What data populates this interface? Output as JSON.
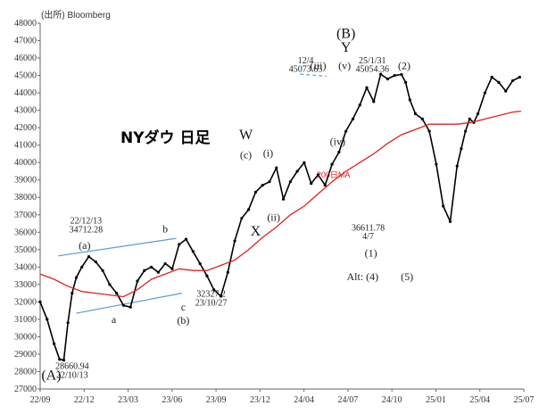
{
  "chart_data": {
    "type": "line",
    "title": "NYダウ 日足",
    "source": "(出所) Bloomberg",
    "ylim": [
      27000,
      48000
    ],
    "y_ticks": [
      27000,
      28000,
      29000,
      30000,
      31000,
      32000,
      33000,
      34000,
      35000,
      36000,
      37000,
      38000,
      39000,
      40000,
      41000,
      42000,
      43000,
      44000,
      45000,
      46000,
      47000,
      48000
    ],
    "x_ticks": [
      "22/09",
      "22/12",
      "23/03",
      "23/06",
      "23/09",
      "23/12",
      "24/04",
      "24/07",
      "24/10",
      "25/01",
      "25/04",
      "25/07"
    ],
    "xlim": [
      0,
      34.8
    ],
    "grid": false,
    "colors": {
      "price": "#000000",
      "ma": "#e02020",
      "trend": "#5b9bd5"
    },
    "series": [
      {
        "kind": "price",
        "x": [
          0,
          0.5,
          1,
          1.4,
          1.7,
          2,
          2.3,
          2.6,
          3,
          3.5,
          4,
          4.5,
          5,
          5.5,
          6,
          6.5,
          7,
          7.5,
          8,
          8.5,
          9,
          9.5,
          10,
          10.5,
          11,
          11.5,
          12,
          12.5,
          13,
          13.5,
          14,
          14.5,
          15,
          15.5,
          16,
          16.5,
          17,
          17.5,
          18,
          18.5,
          19,
          19.5,
          20,
          20.5,
          21,
          21.5,
          22,
          22.5,
          23,
          23.5,
          24,
          24.5,
          25,
          25.5,
          26,
          26.3,
          26.6,
          27,
          27.5,
          28,
          28.5,
          29,
          29.5,
          30,
          30.3,
          30.6,
          30.9,
          31.2,
          31.5,
          32,
          32.5,
          33,
          33.5,
          34,
          34.5
        ],
        "values": [
          32000,
          31000,
          29600,
          28700,
          28660,
          30800,
          32500,
          33400,
          34000,
          34600,
          34300,
          33800,
          33000,
          32500,
          31800,
          31700,
          33200,
          33800,
          34000,
          33700,
          34200,
          33900,
          35300,
          35600,
          34900,
          34200,
          33500,
          32700,
          32327,
          33700,
          35500,
          36800,
          37300,
          38300,
          38700,
          38900,
          39700,
          37900,
          38900,
          39500,
          40000,
          38800,
          39300,
          38700,
          39900,
          40600,
          41800,
          42500,
          43300,
          44300,
          43500,
          45073,
          44800,
          45000,
          45054,
          44600,
          43600,
          42800,
          42500,
          41800,
          39900,
          37500,
          36612,
          39800,
          40800,
          41800,
          42500,
          42300,
          42800,
          44000,
          44900,
          44600,
          44100,
          44700,
          44900
        ]
      },
      {
        "kind": "ma",
        "name": "200日MA",
        "x": [
          0,
          1,
          2,
          3,
          4,
          5,
          6,
          7,
          8,
          9,
          10,
          11,
          12,
          13,
          14,
          15,
          16,
          17,
          18,
          19,
          20,
          21,
          22,
          23,
          24,
          25,
          26,
          27,
          28,
          29,
          30,
          31,
          32,
          33,
          34,
          34.6
        ],
        "values": [
          33600,
          33300,
          32900,
          32600,
          32500,
          32400,
          32300,
          32700,
          33300,
          33600,
          33900,
          33800,
          33800,
          34100,
          34400,
          35000,
          35700,
          36300,
          37000,
          37500,
          38200,
          38900,
          39500,
          40000,
          40500,
          41100,
          41600,
          41900,
          42200,
          42200,
          42200,
          42300,
          42500,
          42700,
          42900,
          42950
        ]
      }
    ],
    "trendlines": [
      {
        "points": [
          [
            1.3,
            34640
          ],
          [
            9.8,
            35650
          ]
        ]
      },
      {
        "points": [
          [
            2.6,
            31350
          ],
          [
            10.2,
            32500
          ]
        ]
      },
      {
        "points": [
          [
            18.7,
            45080
          ],
          [
            20.6,
            44950
          ]
        ],
        "dashed": true
      }
    ],
    "annotations": [
      {
        "text": "(A)",
        "x": 0.8,
        "y": 27550,
        "size": "big"
      },
      {
        "text": "28660.94",
        "x": 2.3,
        "y": 28150
      },
      {
        "text": "22/10/13",
        "x": 2.3,
        "y": 27650
      },
      {
        "text": "22/12/13",
        "x": 3.3,
        "y": 36500
      },
      {
        "text": "34712.28",
        "x": 3.3,
        "y": 36000
      },
      {
        "text": "(a)",
        "x": 3.2,
        "y": 35050,
        "size": "wave"
      },
      {
        "text": "b",
        "x": 9.0,
        "y": 36000,
        "size": "wave"
      },
      {
        "text": "a",
        "x": 5.3,
        "y": 30800,
        "size": "wave"
      },
      {
        "text": "c",
        "x": 10.3,
        "y": 31500,
        "size": "wave"
      },
      {
        "text": "(b)",
        "x": 10.3,
        "y": 30750,
        "size": "wave"
      },
      {
        "text": "32327.2",
        "x": 12.3,
        "y": 32300
      },
      {
        "text": "23/10/27",
        "x": 12.3,
        "y": 31800
      },
      {
        "text": "W",
        "x": 14.8,
        "y": 41350,
        "size": "big"
      },
      {
        "text": "(c)",
        "x": 14.8,
        "y": 40250,
        "size": "wave"
      },
      {
        "text": "(i)",
        "x": 16.4,
        "y": 40350,
        "size": "wave"
      },
      {
        "text": "(ii)",
        "x": 16.8,
        "y": 36650,
        "size": "wave"
      },
      {
        "text": "X",
        "x": 15.5,
        "y": 35800,
        "size": "big"
      },
      {
        "text": "12/4",
        "x": 19.1,
        "y": 45700
      },
      {
        "text": "45073.63",
        "x": 19.1,
        "y": 45200
      },
      {
        "text": "(iii)",
        "x": 20.0,
        "y": 45350,
        "size": "wave"
      },
      {
        "text": "(v)",
        "x": 21.9,
        "y": 45350,
        "size": "wave"
      },
      {
        "text": "(B)",
        "x": 22.0,
        "y": 47150,
        "size": "big"
      },
      {
        "text": "Y",
        "x": 22.0,
        "y": 46350,
        "size": "big"
      },
      {
        "text": "25/1/31",
        "x": 23.9,
        "y": 45700
      },
      {
        "text": "45054.36",
        "x": 23.9,
        "y": 45200
      },
      {
        "text": "(iv)",
        "x": 21.4,
        "y": 41000,
        "size": "wave"
      },
      {
        "text": "200日MA",
        "x": 21.1,
        "y": 39150,
        "kind": "ma"
      },
      {
        "text": "36611.78",
        "x": 23.6,
        "y": 36100
      },
      {
        "text": "4/7",
        "x": 23.6,
        "y": 35600
      },
      {
        "text": "(1)",
        "x": 23.8,
        "y": 34600,
        "size": "wave"
      },
      {
        "text": "(2)",
        "x": 26.2,
        "y": 45350,
        "size": "wave"
      },
      {
        "text": "Alt: (4)",
        "x": 23.2,
        "y": 33250,
        "size": "wave"
      },
      {
        "text": "(5)",
        "x": 26.4,
        "y": 33250,
        "size": "wave"
      }
    ]
  }
}
